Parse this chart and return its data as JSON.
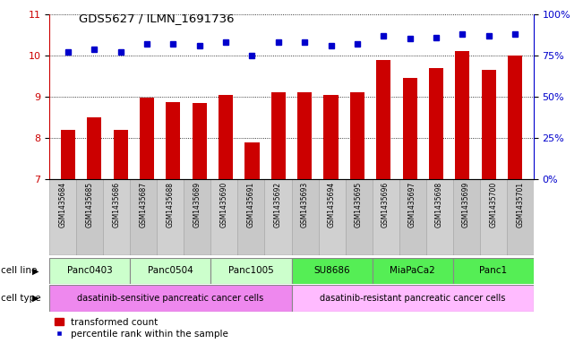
{
  "title": "GDS5627 / ILMN_1691736",
  "samples": [
    "GSM1435684",
    "GSM1435685",
    "GSM1435686",
    "GSM1435687",
    "GSM1435688",
    "GSM1435689",
    "GSM1435690",
    "GSM1435691",
    "GSM1435692",
    "GSM1435693",
    "GSM1435694",
    "GSM1435695",
    "GSM1435696",
    "GSM1435697",
    "GSM1435698",
    "GSM1435699",
    "GSM1435700",
    "GSM1435701"
  ],
  "bar_values": [
    8.2,
    8.5,
    8.2,
    8.97,
    8.88,
    8.85,
    9.05,
    7.9,
    9.1,
    9.1,
    9.05,
    9.1,
    9.9,
    9.45,
    9.7,
    10.1,
    9.65,
    10.0
  ],
  "dot_values": [
    77,
    79,
    77,
    82,
    82,
    81,
    83,
    75,
    83,
    83,
    81,
    82,
    87,
    85,
    86,
    88,
    87,
    88
  ],
  "bar_color": "#cc0000",
  "dot_color": "#0000cc",
  "ylim_left": [
    7,
    11
  ],
  "ylim_right": [
    0,
    100
  ],
  "yticks_left": [
    7,
    8,
    9,
    10,
    11
  ],
  "yticks_right": [
    0,
    25,
    50,
    75,
    100
  ],
  "ytick_labels_right": [
    "0%",
    "25%",
    "50%",
    "75%",
    "100%"
  ],
  "cell_lines": [
    {
      "label": "Panc0403",
      "start": 0,
      "end": 3,
      "color": "#ccffcc"
    },
    {
      "label": "Panc0504",
      "start": 3,
      "end": 6,
      "color": "#ccffcc"
    },
    {
      "label": "Panc1005",
      "start": 6,
      "end": 9,
      "color": "#ccffcc"
    },
    {
      "label": "SU8686",
      "start": 9,
      "end": 12,
      "color": "#55ee55"
    },
    {
      "label": "MiaPaCa2",
      "start": 12,
      "end": 15,
      "color": "#55ee55"
    },
    {
      "label": "Panc1",
      "start": 15,
      "end": 18,
      "color": "#55ee55"
    }
  ],
  "cell_types": [
    {
      "label": "dasatinib-sensitive pancreatic cancer cells",
      "start": 0,
      "end": 9,
      "color": "#ee88ee"
    },
    {
      "label": "dasatinib-resistant pancreatic cancer cells",
      "start": 9,
      "end": 18,
      "color": "#ffbbff"
    }
  ],
  "sample_col_colors": [
    "#d0d0d0",
    "#c8c8c8"
  ],
  "legend_bar_label": "transformed count",
  "legend_dot_label": "percentile rank within the sample",
  "cell_line_row_label": "cell line",
  "cell_type_row_label": "cell type",
  "bg_color": "#ffffff"
}
